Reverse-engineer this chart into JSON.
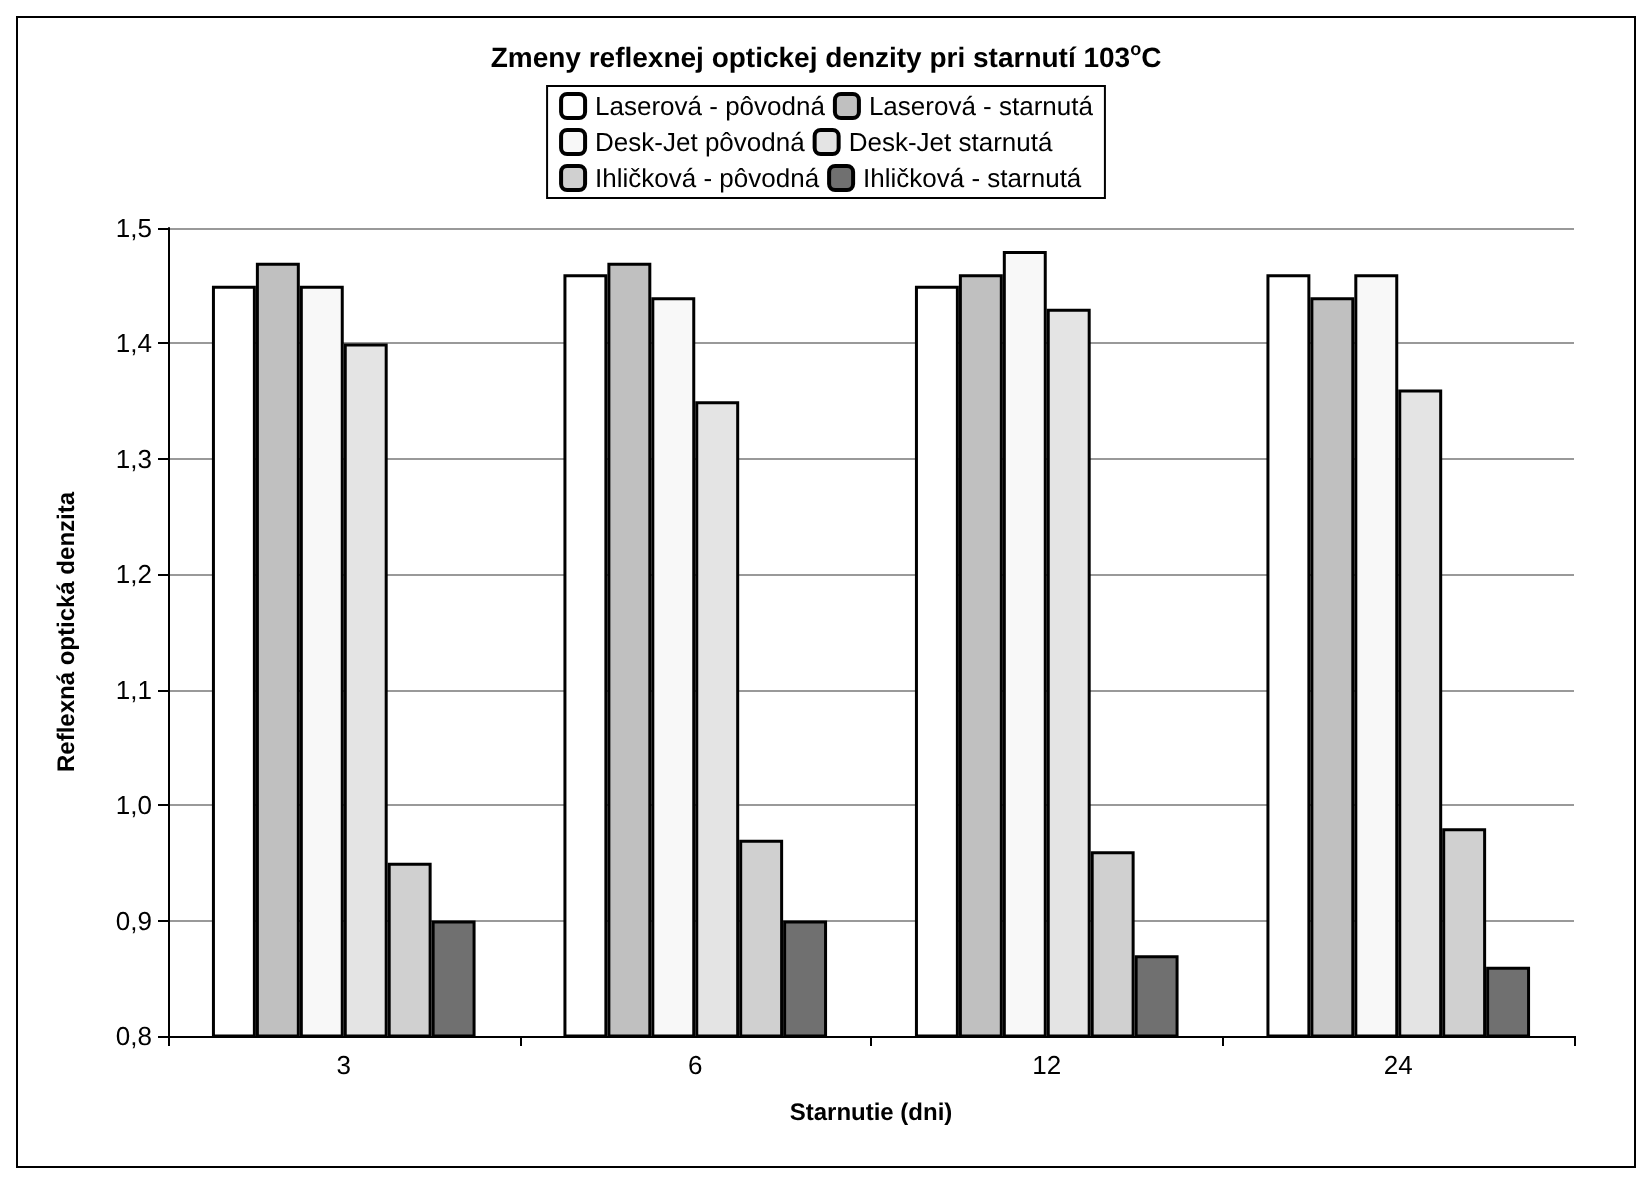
{
  "chart_data": {
    "type": "bar",
    "title": "Zmeny reflexnej optickej denzity pri starnutí 103$^{o}$C",
    "xlabel": "Starnutie (dni)",
    "ylabel": "Reflexná optická denzita",
    "categories": [
      "3",
      "6",
      "12",
      "24"
    ],
    "series": [
      {
        "name": "Laserová - pôvodná",
        "color": "#ffffff",
        "values": [
          1.45,
          1.46,
          1.45,
          1.46
        ]
      },
      {
        "name": "Laserová - starnutá",
        "color": "#c0c0c0",
        "values": [
          1.47,
          1.47,
          1.46,
          1.44
        ]
      },
      {
        "name": "Desk-Jet pôvodná",
        "color": "#f8f8f8",
        "values": [
          1.45,
          1.44,
          1.48,
          1.46
        ]
      },
      {
        "name": "Desk-Jet starnutá",
        "color": "#e4e4e4",
        "values": [
          1.4,
          1.35,
          1.43,
          1.36
        ]
      },
      {
        "name": "Ihličková - pôvodná",
        "color": "#d0d0d0",
        "values": [
          0.95,
          0.97,
          0.96,
          0.98
        ]
      },
      {
        "name": "Ihličková - starnutá",
        "color": "#707070",
        "values": [
          0.9,
          0.9,
          0.87,
          0.86
        ]
      }
    ],
    "ylim": [
      0.8,
      1.5
    ],
    "yticks": [
      {
        "value": 0.8,
        "label": "0,8"
      },
      {
        "value": 0.9,
        "label": "0,9"
      },
      {
        "value": 1.0,
        "label": "1,0"
      },
      {
        "value": 1.1,
        "label": "1,1"
      },
      {
        "value": 1.2,
        "label": "1,2"
      },
      {
        "value": 1.3,
        "label": "1,3"
      },
      {
        "value": 1.4,
        "label": "1,4"
      },
      {
        "value": 1.5,
        "label": "1,5"
      }
    ],
    "grid": "y",
    "legend": "top"
  }
}
